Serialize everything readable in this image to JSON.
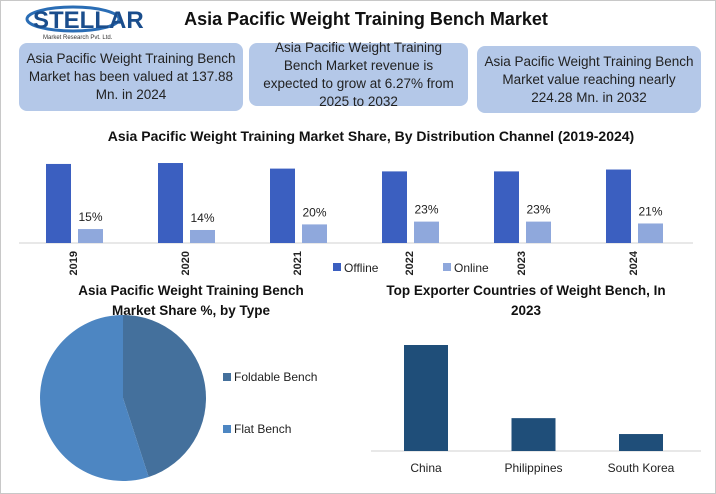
{
  "header": {
    "title": "Asia Pacific Weight Training Bench Market",
    "logo": "STELLAR",
    "logo_subtitle": "Market Research Pvt. Ltd."
  },
  "info_boxes": [
    "Asia Pacific Weight Training Bench Market has been valued at 137.88 Mn. in 2024",
    "Asia Pacific Weight Training Bench Market revenue is expected to grow at 6.27% from 2025 to 2032",
    "Asia Pacific Weight Training Bench Market value reaching nearly 224.28 Mn. in 2032"
  ],
  "chart_data": [
    {
      "type": "bar",
      "title": "Asia Pacific Weight Training Market Share, By Distribution Channel (2019-2024)",
      "categories": [
        "2019",
        "2020",
        "2021",
        "2022",
        "2023",
        "2024"
      ],
      "series": [
        {
          "name": "Offline",
          "color": "#3b5fc0",
          "values": [
            85,
            86,
            80,
            77,
            77,
            79
          ]
        },
        {
          "name": "Online",
          "color": "#8fa8dc",
          "values": [
            15,
            14,
            20,
            23,
            23,
            21
          ],
          "value_labels": [
            "15%",
            "14%",
            "20%",
            "23%",
            "23%",
            "21%"
          ]
        }
      ],
      "legend": "bottom"
    },
    {
      "type": "pie",
      "title": "Asia Pacific Weight Training Bench Market Share %, by Type",
      "categories": [
        "Foldable Bench",
        "Flat Bench"
      ],
      "values": [
        45,
        55
      ],
      "colors": [
        "#44709c",
        "#4d86c2"
      ],
      "legend": "right"
    },
    {
      "type": "bar",
      "title": "Top Exporter Countries of Weight Bench, In 2023",
      "categories": [
        "China",
        "Philippines",
        "South Korea"
      ],
      "values": [
        100,
        31,
        16
      ],
      "color": "#1f4e79"
    }
  ]
}
